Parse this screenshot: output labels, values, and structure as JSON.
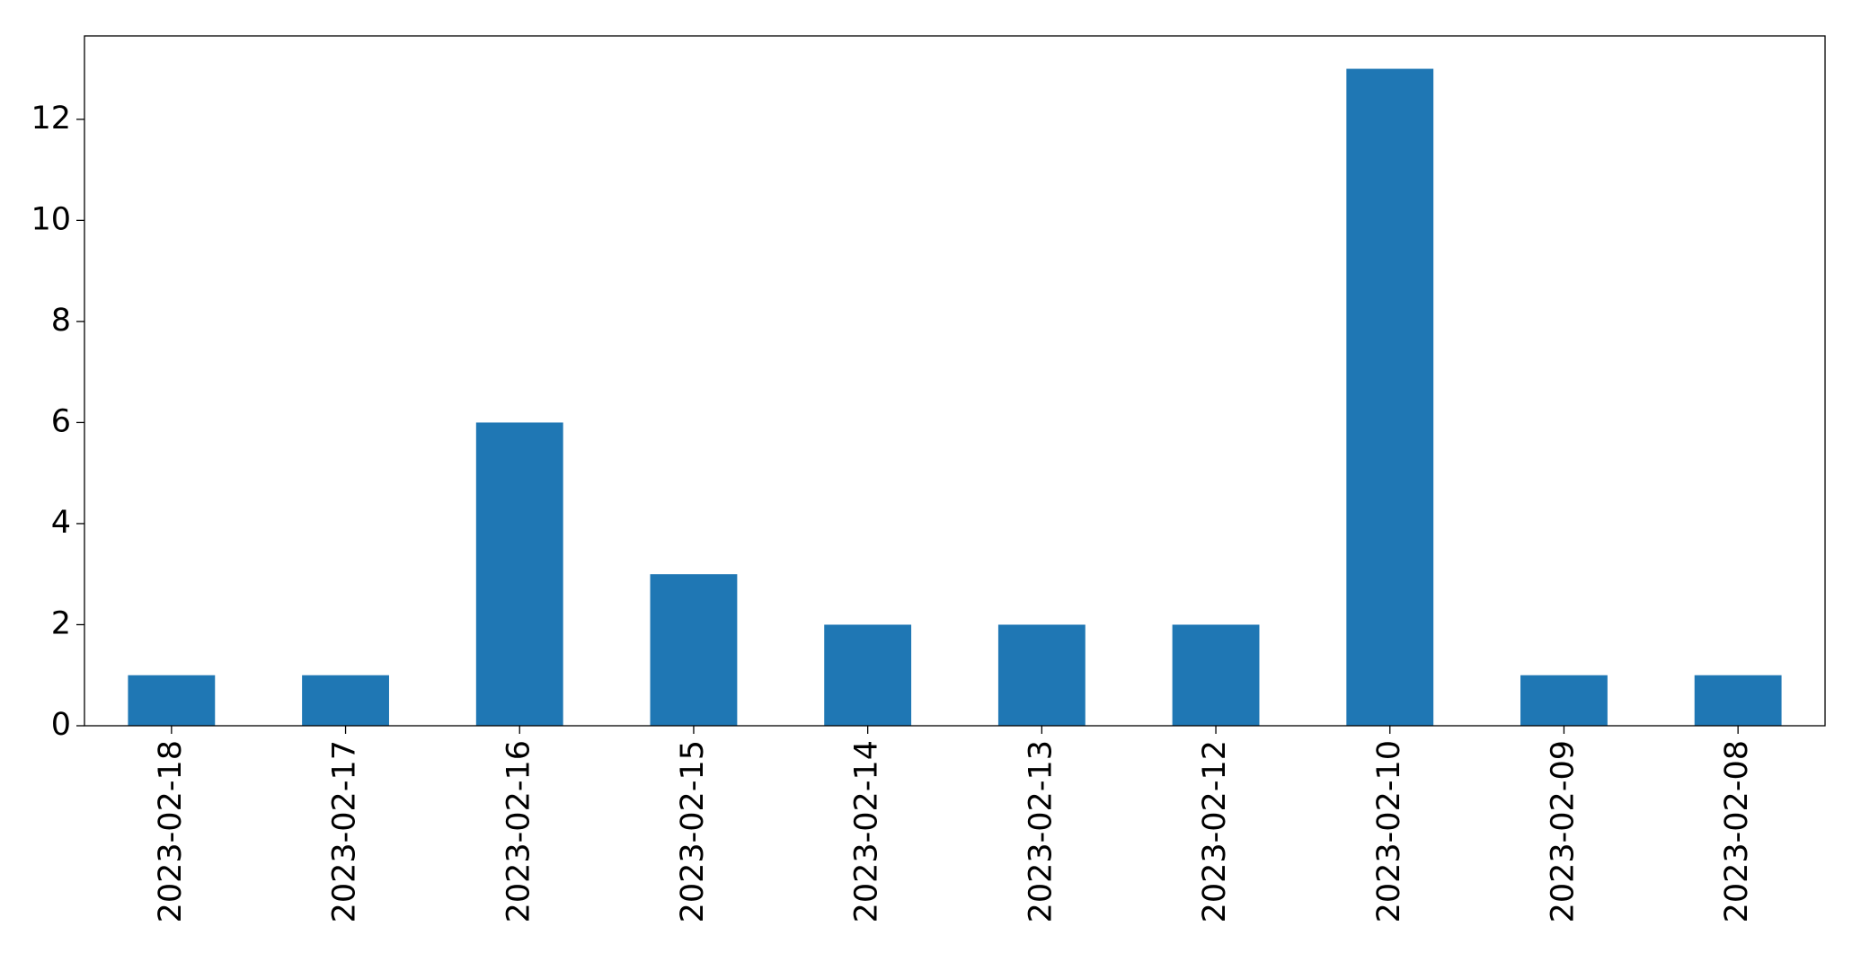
{
  "chart_data": {
    "type": "bar",
    "categories": [
      "2023-02-18",
      "2023-02-17",
      "2023-02-16",
      "2023-02-15",
      "2023-02-14",
      "2023-02-13",
      "2023-02-12",
      "2023-02-10",
      "2023-02-09",
      "2023-02-08"
    ],
    "values": [
      1,
      1,
      6,
      3,
      2,
      2,
      2,
      13,
      1,
      1
    ],
    "color": "#1f77b4",
    "ylim": [
      0,
      13.65
    ],
    "yticks": [
      0,
      2,
      4,
      6,
      8,
      10,
      12
    ],
    "grid": false
  }
}
